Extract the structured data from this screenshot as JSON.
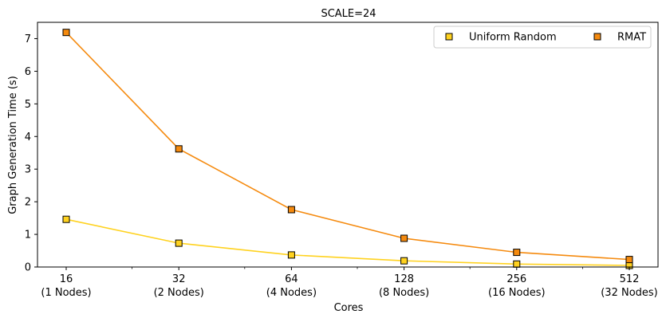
{
  "chart_data": {
    "type": "line",
    "title": "SCALE=24",
    "xlabel": "Cores",
    "ylabel": "Graph Generation Time (s)",
    "x_scale": "log2",
    "x": [
      16,
      32,
      64,
      128,
      256,
      512
    ],
    "x_tick_labels": [
      [
        "16",
        "(1 Nodes)"
      ],
      [
        "32",
        "(2 Nodes)"
      ],
      [
        "64",
        "(4 Nodes)"
      ],
      [
        "128",
        "(8 Nodes)"
      ],
      [
        "256",
        "(16 Nodes)"
      ],
      [
        "512",
        "(32 Nodes)"
      ]
    ],
    "ylim": [
      0,
      7.5
    ],
    "y_ticks": [
      0,
      1,
      2,
      3,
      4,
      5,
      6,
      7
    ],
    "grid": false,
    "legend": "top-right",
    "series": [
      {
        "name": "Uniform Random",
        "color": "#ffd21f",
        "marker": "square",
        "values": [
          1.46,
          0.73,
          0.37,
          0.19,
          0.09,
          0.05
        ]
      },
      {
        "name": "RMAT",
        "color": "#f58a0e",
        "marker": "square",
        "values": [
          7.19,
          3.62,
          1.76,
          0.88,
          0.45,
          0.23
        ]
      }
    ]
  }
}
